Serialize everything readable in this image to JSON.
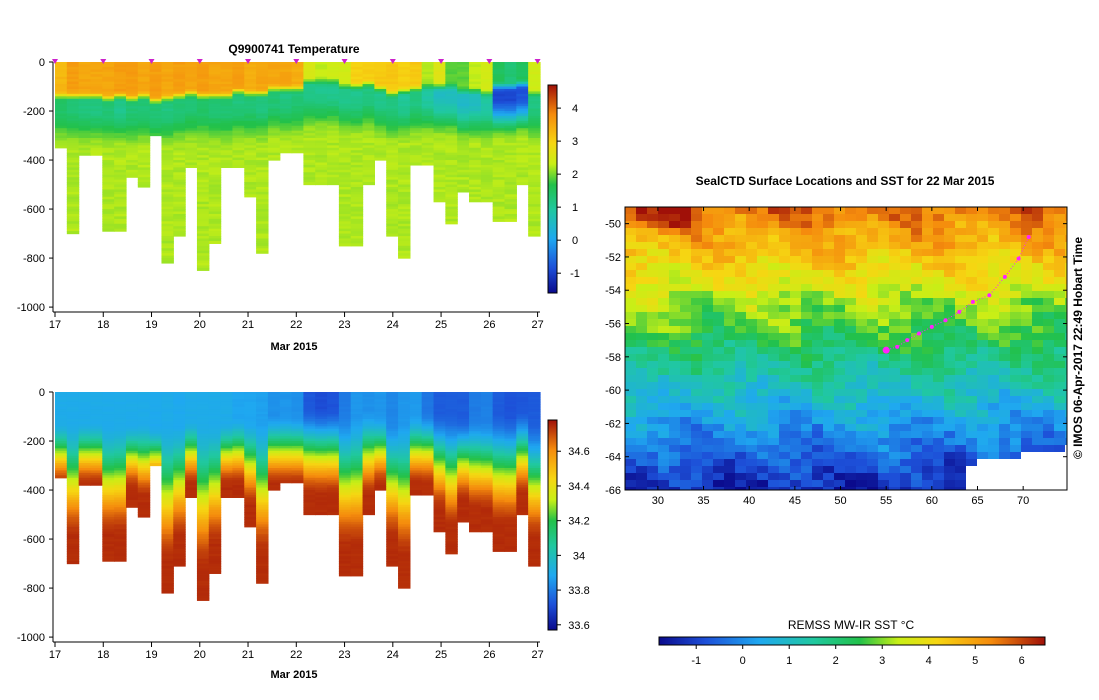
{
  "chart_data": [
    {
      "type": "heatmap",
      "title": "Q9900741  Temperature",
      "xlabel": "Mar 2015",
      "ylabel": "",
      "x_ticks": [
        "17",
        "18",
        "19",
        "20",
        "21",
        "22",
        "23",
        "24",
        "25",
        "26",
        "27"
      ],
      "y_ticks": [
        "0",
        "-200",
        "-400",
        "-600",
        "-800",
        "-1000"
      ],
      "xlim": [
        17,
        27.05
      ],
      "ylim": [
        -1020,
        0
      ],
      "colorbar": {
        "ticks": [
          "-1",
          "0",
          "1",
          "2",
          "3",
          "4"
        ],
        "range": [
          -1.6,
          4.7
        ]
      },
      "profile_times": [
        17.0,
        17.25,
        17.5,
        17.75,
        18.0,
        18.25,
        18.5,
        18.75,
        19.0,
        19.25,
        19.5,
        19.75,
        20.0,
        20.25,
        20.5,
        20.75,
        21.0,
        21.25,
        21.5,
        21.75,
        22.0,
        22.25,
        22.5,
        22.75,
        23.0,
        23.25,
        23.5,
        23.75,
        24.0,
        24.25,
        24.5,
        24.75,
        25.0,
        25.25,
        25.5,
        25.75,
        26.0,
        26.25,
        26.5,
        26.75,
        27.0
      ],
      "profile_max_depth": [
        350,
        700,
        380,
        380,
        690,
        690,
        465,
        510,
        300,
        820,
        710,
        430,
        850,
        740,
        430,
        430,
        550,
        780,
        400,
        370,
        370,
        500,
        500,
        500,
        750,
        750,
        500,
        400,
        710,
        795,
        420,
        420,
        565,
        655,
        525,
        570,
        570,
        645,
        645,
        500,
        710
      ],
      "surface_temp": [
        3.3,
        3.6,
        3.5,
        3.5,
        3.5,
        3.6,
        3.6,
        3.5,
        3.6,
        3.5,
        3.6,
        3.5,
        3.6,
        3.5,
        3.5,
        3.6,
        3.4,
        3.5,
        3.5,
        3.5,
        3.4,
        2.5,
        2.3,
        2.4,
        2.4,
        3.0,
        3.0,
        3.1,
        3.1,
        3.0,
        3.1,
        2.2,
        2.6,
        1.9,
        1.9,
        2.3,
        2.4,
        1.5,
        1.3,
        1.5,
        2.4
      ],
      "mixed_layer_depth": [
        120,
        120,
        120,
        120,
        130,
        120,
        130,
        120,
        140,
        130,
        120,
        110,
        120,
        120,
        120,
        100,
        110,
        110,
        90,
        90,
        90,
        60,
        60,
        60,
        80,
        80,
        70,
        90,
        110,
        100,
        90,
        80,
        80,
        80,
        100,
        100,
        110,
        80,
        80,
        70,
        110
      ],
      "min_temp_level": [
        1.4,
        1.3,
        1.2,
        1.2,
        1.3,
        1.1,
        1.3,
        1.3,
        1.3,
        1.2,
        1.3,
        1.3,
        1.4,
        1.3,
        1.3,
        1.2,
        1.3,
        1.2,
        1.3,
        1.2,
        1.3,
        1.1,
        1.1,
        1.1,
        1.1,
        1.1,
        1.2,
        1.1,
        1.2,
        1.0,
        1.2,
        0.9,
        0.6,
        0.6,
        0.5,
        0.6,
        0.9,
        -0.9,
        -0.9,
        -0.8,
        1.2
      ],
      "deep_temp": 2.2,
      "profile_markers": [
        17,
        18,
        19,
        20,
        21,
        22,
        23,
        24,
        25,
        26,
        27
      ]
    },
    {
      "type": "heatmap",
      "title": "",
      "xlabel": "Mar 2015",
      "ylabel": "",
      "x_ticks": [
        "17",
        "18",
        "19",
        "20",
        "21",
        "22",
        "23",
        "24",
        "25",
        "26",
        "27"
      ],
      "y_ticks": [
        "0",
        "-200",
        "-400",
        "-600",
        "-800",
        "-1000"
      ],
      "xlim": [
        17,
        27.05
      ],
      "ylim": [
        -1020,
        0
      ],
      "colorbar": {
        "ticks": [
          "34.6",
          "34.4",
          "34.2",
          "34",
          "33.8",
          "33.6"
        ],
        "range": [
          33.57,
          34.78
        ]
      },
      "surface_value": [
        33.9,
        33.9,
        33.9,
        33.9,
        33.9,
        33.9,
        33.9,
        33.9,
        33.89,
        33.9,
        33.89,
        33.9,
        33.9,
        33.9,
        33.9,
        33.88,
        33.88,
        33.87,
        33.84,
        33.85,
        33.84,
        33.73,
        33.71,
        33.72,
        33.8,
        33.85,
        33.84,
        33.85,
        33.82,
        33.85,
        33.86,
        33.79,
        33.74,
        33.74,
        33.74,
        33.8,
        33.81,
        33.74,
        33.72,
        33.73,
        33.74
      ],
      "deep_value": 34.74
    },
    {
      "type": "heatmap",
      "title": "SealCTD Surface Locations and SST for 22 Mar 2015",
      "xlabel": "",
      "ylabel": "",
      "x_ticks": [
        "30",
        "35",
        "40",
        "45",
        "50",
        "55",
        "60",
        "65",
        "70"
      ],
      "y_ticks": [
        "-50",
        "-52",
        "-54",
        "-56",
        "-58",
        "-60",
        "-62",
        "-64",
        "-66"
      ],
      "xlim": [
        26.4,
        74.8
      ],
      "ylim": [
        -66,
        -49
      ],
      "side_label": "© IMOS 06-Apr-2017 22:49 Hobart Time",
      "colorbar": {
        "label": "REMSS MW-IR SST °C",
        "ticks": [
          "-1",
          "0",
          "1",
          "2",
          "3",
          "4",
          "5",
          "6"
        ],
        "range": [
          -1.8,
          6.5
        ]
      },
      "track": [
        {
          "lon": 70.6,
          "lat": -50.8
        },
        {
          "lon": 69.5,
          "lat": -52.1
        },
        {
          "lon": 68.0,
          "lat": -53.2
        },
        {
          "lon": 66.3,
          "lat": -54.3
        },
        {
          "lon": 64.5,
          "lat": -54.7
        },
        {
          "lon": 63.0,
          "lat": -55.3
        },
        {
          "lon": 61.5,
          "lat": -55.8
        },
        {
          "lon": 60.0,
          "lat": -56.2
        },
        {
          "lon": 58.6,
          "lat": -56.6
        },
        {
          "lon": 57.3,
          "lat": -57.0
        },
        {
          "lon": 56.2,
          "lat": -57.4
        },
        {
          "lon": 55.0,
          "lat": -57.6
        }
      ],
      "track_color": "#ff22ff"
    }
  ]
}
